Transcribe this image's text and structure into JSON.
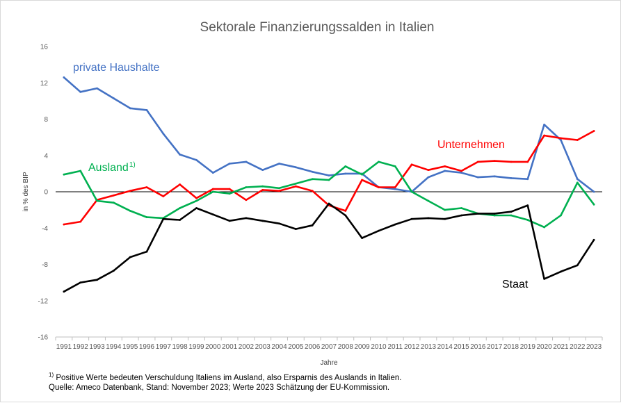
{
  "chart_data": {
    "type": "line",
    "title": "Sektorale Finanzierungssalden in Italien",
    "xlabel": "Jahre",
    "ylabel": "in % des BIP",
    "ylim": [
      -16,
      16
    ],
    "yticks": [
      16,
      12,
      8,
      4,
      0,
      -4,
      -8,
      -12,
      -16
    ],
    "ytick_labels": [
      "16",
      "12",
      "8",
      "4",
      "0",
      "-4",
      "-8",
      "-12",
      "-16"
    ],
    "grid": false,
    "legend": "inline labels",
    "x": [
      "1991",
      "1992",
      "1993",
      "1994",
      "1995",
      "1996",
      "1997",
      "1998",
      "1999",
      "2000",
      "2001",
      "2002",
      "2003",
      "2004",
      "2005",
      "2006",
      "2007",
      "2008",
      "2009",
      "2010",
      "2011",
      "2012",
      "2013",
      "2014",
      "2015",
      "2016",
      "2017",
      "2018",
      "2019",
      "2020",
      "2021",
      "2022",
      "2023"
    ],
    "series": [
      {
        "name": "private Haushalte",
        "color": "#4472c4",
        "values": [
          12.6,
          11.0,
          11.4,
          10.3,
          9.2,
          9.0,
          6.4,
          4.1,
          3.5,
          2.1,
          3.1,
          3.3,
          2.4,
          3.1,
          2.7,
          2.2,
          1.8,
          2.0,
          2.0,
          0.5,
          0.3,
          0.0,
          1.6,
          2.3,
          2.1,
          1.6,
          1.7,
          1.5,
          1.4,
          7.4,
          5.7,
          1.4,
          0.0
        ]
      },
      {
        "name": "Unternehmen",
        "color": "#ff0000",
        "values": [
          -3.6,
          -3.3,
          -0.9,
          -0.4,
          0.1,
          0.5,
          -0.5,
          0.8,
          -0.7,
          0.3,
          0.3,
          -0.9,
          0.2,
          0.1,
          0.6,
          0.1,
          -1.5,
          -2.1,
          1.3,
          0.5,
          0.5,
          3.0,
          2.4,
          2.8,
          2.3,
          3.3,
          3.4,
          3.3,
          3.3,
          6.2,
          5.9,
          5.7,
          6.7
        ]
      },
      {
        "name": "Ausland",
        "name_sup": "1)",
        "color": "#00b050",
        "values": [
          1.9,
          2.3,
          -1.0,
          -1.2,
          -2.1,
          -2.8,
          -2.9,
          -1.8,
          -1.0,
          0.0,
          -0.2,
          0.5,
          0.6,
          0.4,
          0.9,
          1.4,
          1.3,
          2.8,
          1.9,
          3.3,
          2.8,
          0.0,
          -1.0,
          -2.0,
          -1.8,
          -2.4,
          -2.6,
          -2.6,
          -3.1,
          -3.9,
          -2.6,
          1.0,
          -1.4
        ]
      },
      {
        "name": "Staat",
        "color": "#000000",
        "values": [
          -11.0,
          -10.0,
          -9.7,
          -8.7,
          -7.2,
          -6.6,
          -3.0,
          -3.1,
          -1.8,
          -2.5,
          -3.2,
          -2.9,
          -3.2,
          -3.5,
          -4.1,
          -3.7,
          -1.3,
          -2.6,
          -5.1,
          -4.3,
          -3.6,
          -3.0,
          -2.9,
          -3.0,
          -2.6,
          -2.4,
          -2.4,
          -2.2,
          -1.5,
          -9.6,
          -8.8,
          -8.1,
          -5.3
        ]
      }
    ]
  },
  "notes": {
    "footnote_marker": "1)",
    "footnote_text": " Positive Werte bedeuten Verschuldung Italiens im Ausland, also Ersparnis des Auslands in Italien.",
    "source": "Quelle: Ameco Datenbank, Stand: November 2023; Werte 2023 Schätzung der EU-Kommission."
  }
}
